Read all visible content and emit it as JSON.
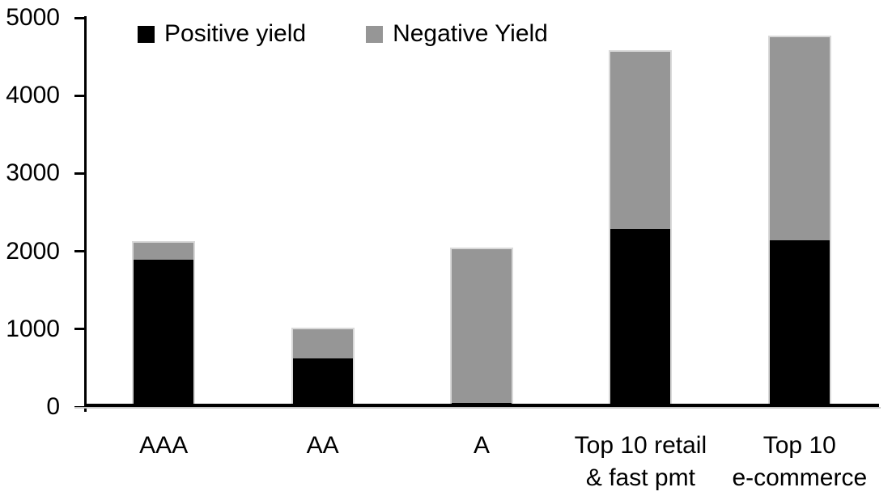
{
  "chart_data": {
    "type": "stacked_bar",
    "title": "",
    "xlabel": "",
    "ylabel": "",
    "categories": [
      "AAA",
      "AA",
      "A",
      "Top 10 retail\n& fast pmt",
      "Top 10\ne-commerce"
    ],
    "series": [
      {
        "name": "Positive yield",
        "color": "#000000",
        "values": [
          1890,
          620,
          50,
          2290,
          2140
        ]
      },
      {
        "name": "Negative Yield",
        "color": "#969696",
        "values": [
          220,
          380,
          1980,
          2270,
          2610
        ]
      }
    ],
    "totals": [
      2110,
      1000,
      2030,
      4560,
      4750
    ],
    "ylim": [
      0,
      5000
    ],
    "yticks": [
      0,
      1000,
      2000,
      3000,
      4000,
      5000
    ],
    "grid": false,
    "legend_position": "top-left",
    "axis_color": "#000000",
    "bar_outline_color": "#d9d9d9",
    "background_color": "#ffffff"
  }
}
